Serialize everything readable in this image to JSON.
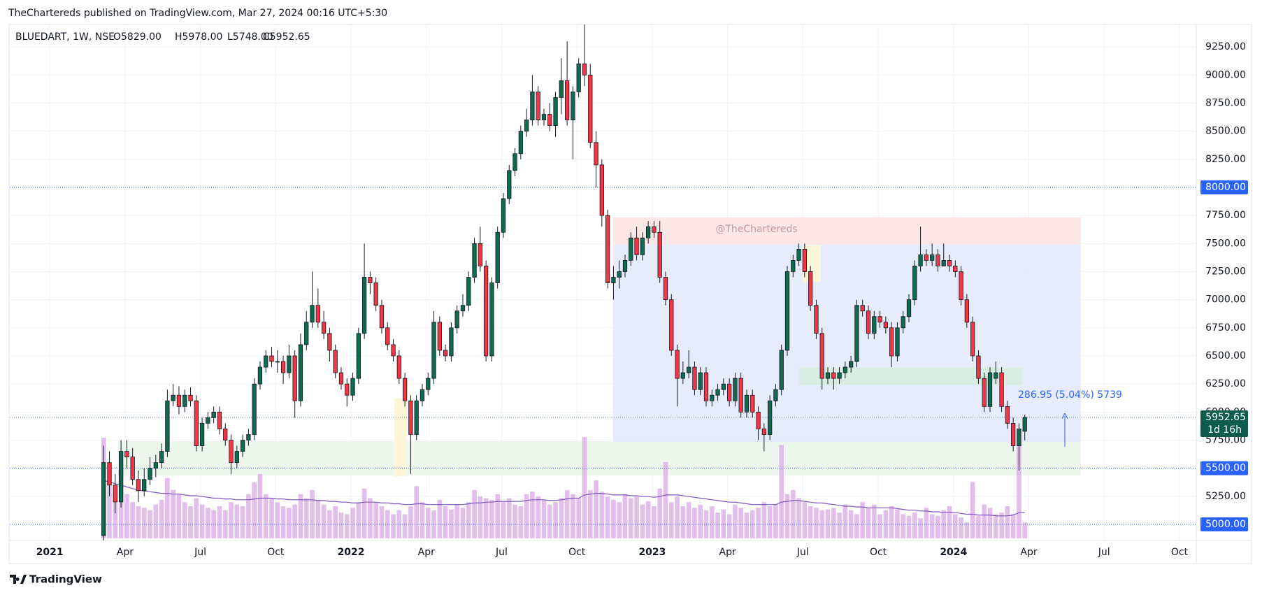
{
  "header": {
    "publisher": "TheChartereds published on TradingView.com, Mar 27, 2024 00:16 UTC+5:30",
    "footer": "TradingView"
  },
  "chart_data": {
    "type": "candlestick",
    "title": "BLUEDART, 1W, NSE",
    "ohlc_legend": [
      "O5829.00",
      "H5978.00",
      "L5748.00",
      "C5952.65"
    ],
    "watermark": "@TheChartereds",
    "measure": "286.95 (5.04%) 5739",
    "up_color": "#0f6b4f",
    "down_color": "#f23645",
    "volume_color": "#ddb3e6",
    "volume_ma_color": "#7e57c2",
    "xlim": [
      -16.2,
      188.6
    ],
    "xticks": [
      {
        "value": -9.3,
        "label": "2021"
      },
      {
        "value": 3.7,
        "label": "Apr"
      },
      {
        "value": 16.7,
        "label": "Jul"
      },
      {
        "value": 29.7,
        "label": "Oct"
      },
      {
        "value": 42.7,
        "label": "2022"
      },
      {
        "value": 55.7,
        "label": "Apr"
      },
      {
        "value": 68.7,
        "label": "Jul"
      },
      {
        "value": 81.7,
        "label": "Oct"
      },
      {
        "value": 94.7,
        "label": "2023"
      },
      {
        "value": 107.7,
        "label": "Apr"
      },
      {
        "value": 120.7,
        "label": "Jul"
      },
      {
        "value": 133.7,
        "label": "Oct"
      },
      {
        "value": 146.7,
        "label": "2024"
      },
      {
        "value": 159.7,
        "label": "Apr"
      },
      {
        "value": 172.7,
        "label": "Jul"
      },
      {
        "value": 185.7,
        "label": "Oct"
      }
    ],
    "ylim": [
      4857,
      9450
    ],
    "yticks": [
      {
        "value": 5250,
        "label": "5250.00"
      },
      {
        "value": 5750,
        "label": "5750.00"
      },
      {
        "value": 6000,
        "label": "6000.00"
      },
      {
        "value": 6250,
        "label": "6250.00"
      },
      {
        "value": 6500,
        "label": "6500.00"
      },
      {
        "value": 6750,
        "label": "6750.00"
      },
      {
        "value": 7000,
        "label": "7000.00"
      },
      {
        "value": 7250,
        "label": "7250.00"
      },
      {
        "value": 7500,
        "label": "7500.00"
      },
      {
        "value": 7750,
        "label": "7750.00"
      },
      {
        "value": 8250,
        "label": "8250.00"
      },
      {
        "value": 8500,
        "label": "8500.00"
      },
      {
        "value": 8750,
        "label": "8750.00"
      },
      {
        "value": 9000,
        "label": "9000.00"
      },
      {
        "value": 9250,
        "label": "9250.00"
      }
    ],
    "grid": true,
    "hlines": [
      {
        "value": 8000,
        "label": "8000.00"
      },
      {
        "value": 5500,
        "label": "5500.00"
      },
      {
        "value": 5000,
        "label": "5000.00"
      }
    ],
    "last_price": {
      "value": 5952.65,
      "label": "5952.65"
    },
    "countdown": "1d 16h",
    "ohlc": [
      [
        4900,
        5700,
        4830,
        5550
      ],
      [
        5550,
        5650,
        5250,
        5350
      ],
      [
        5350,
        5450,
        5100,
        5200
      ],
      [
        5200,
        5750,
        5150,
        5650
      ],
      [
        5650,
        5750,
        5500,
        5600
      ],
      [
        5600,
        5680,
        5350,
        5400
      ],
      [
        5400,
        5480,
        5200,
        5300
      ],
      [
        5300,
        5500,
        5250,
        5400
      ],
      [
        5400,
        5600,
        5350,
        5500
      ],
      [
        5500,
        5620,
        5420,
        5550
      ],
      [
        5550,
        5720,
        5500,
        5650
      ],
      [
        5650,
        6200,
        5600,
        6100
      ],
      [
        6100,
        6250,
        6050,
        6150
      ],
      [
        6150,
        6230,
        5980,
        6050
      ],
      [
        6050,
        6200,
        6000,
        6150
      ],
      [
        6150,
        6220,
        6050,
        6100
      ],
      [
        6100,
        6150,
        5650,
        5700
      ],
      [
        5700,
        5950,
        5650,
        5900
      ],
      [
        5900,
        6000,
        5850,
        5950
      ],
      [
        5950,
        6050,
        5900,
        6000
      ],
      [
        6000,
        6050,
        5800,
        5850
      ],
      [
        5850,
        5900,
        5700,
        5750
      ],
      [
        5750,
        5800,
        5450,
        5550
      ],
      [
        5550,
        5700,
        5500,
        5650
      ],
      [
        5650,
        5800,
        5600,
        5750
      ],
      [
        5750,
        5850,
        5700,
        5800
      ],
      [
        5800,
        6300,
        5750,
        6250
      ],
      [
        6250,
        6450,
        6200,
        6400
      ],
      [
        6400,
        6550,
        6350,
        6500
      ],
      [
        6500,
        6580,
        6400,
        6450
      ],
      [
        6450,
        6550,
        6350,
        6450
      ],
      [
        6450,
        6500,
        6250,
        6350
      ],
      [
        6350,
        6600,
        6300,
        6500
      ],
      [
        6500,
        6550,
        5950,
        6100
      ],
      [
        6100,
        6700,
        6050,
        6600
      ],
      [
        6600,
        6900,
        6550,
        6800
      ],
      [
        6800,
        7250,
        6750,
        6950
      ],
      [
        6950,
        7100,
        6750,
        6800
      ],
      [
        6800,
        6900,
        6650,
        6700
      ],
      [
        6700,
        6750,
        6450,
        6550
      ],
      [
        6550,
        6600,
        6300,
        6350
      ],
      [
        6350,
        6400,
        6200,
        6250
      ],
      [
        6250,
        6300,
        6050,
        6150
      ],
      [
        6150,
        6350,
        6100,
        6300
      ],
      [
        6300,
        6750,
        6250,
        6700
      ],
      [
        6700,
        7500,
        6650,
        7200
      ],
      [
        7200,
        7250,
        7050,
        7150
      ],
      [
        7150,
        7200,
        6900,
        6950
      ],
      [
        6950,
        7000,
        6700,
        6750
      ],
      [
        6750,
        6800,
        6550,
        6600
      ],
      [
        6600,
        6650,
        6450,
        6500
      ],
      [
        6500,
        6550,
        6250,
        6300
      ],
      [
        6300,
        6350,
        6050,
        6100
      ],
      [
        6100,
        6150,
        5450,
        5800
      ],
      [
        5800,
        6150,
        5750,
        6100
      ],
      [
        6100,
        6250,
        6050,
        6200
      ],
      [
        6200,
        6350,
        6150,
        6300
      ],
      [
        6300,
        6900,
        6250,
        6800
      ],
      [
        6800,
        6850,
        6500,
        6550
      ],
      [
        6550,
        6600,
        6450,
        6500
      ],
      [
        6500,
        6800,
        6450,
        6750
      ],
      [
        6750,
        6950,
        6700,
        6900
      ],
      [
        6900,
        7050,
        6850,
        6950
      ],
      [
        6950,
        7250,
        6900,
        7200
      ],
      [
        7200,
        7550,
        7150,
        7500
      ],
      [
        7500,
        7650,
        7250,
        7300
      ],
      [
        7300,
        7350,
        6450,
        6500
      ],
      [
        6500,
        7200,
        6450,
        7150
      ],
      [
        7150,
        7650,
        7100,
        7600
      ],
      [
        7600,
        7950,
        7550,
        7900
      ],
      [
        7900,
        8200,
        7850,
        8150
      ],
      [
        8150,
        8350,
        8100,
        8300
      ],
      [
        8300,
        8550,
        8250,
        8500
      ],
      [
        8500,
        8700,
        8450,
        8600
      ],
      [
        8600,
        9000,
        8550,
        8850
      ],
      [
        8850,
        8900,
        8550,
        8600
      ],
      [
        8600,
        8700,
        8550,
        8650
      ],
      [
        8650,
        8750,
        8500,
        8550
      ],
      [
        8550,
        8850,
        8450,
        8800
      ],
      [
        8800,
        9150,
        8650,
        8950
      ],
      [
        8950,
        9300,
        8550,
        8600
      ],
      [
        8600,
        8900,
        8250,
        8850
      ],
      [
        8850,
        9150,
        8800,
        9100
      ],
      [
        9100,
        9450,
        8900,
        9000
      ],
      [
        9000,
        9100,
        8350,
        8400
      ],
      [
        8400,
        8500,
        8000,
        8200
      ],
      [
        8200,
        8250,
        7650,
        7750
      ],
      [
        7750,
        7800,
        7100,
        7150
      ],
      [
        7150,
        7300,
        7000,
        7200
      ],
      [
        7200,
        7350,
        7100,
        7250
      ],
      [
        7250,
        7400,
        7200,
        7350
      ],
      [
        7350,
        7600,
        7300,
        7550
      ],
      [
        7550,
        7650,
        7350,
        7400
      ],
      [
        7400,
        7600,
        7350,
        7550
      ],
      [
        7550,
        7700,
        7500,
        7650
      ],
      [
        7650,
        7700,
        7550,
        7600
      ],
      [
        7600,
        7700,
        7150,
        7200
      ],
      [
        7200,
        7250,
        6950,
        7000
      ],
      [
        7000,
        7050,
        6500,
        6550
      ],
      [
        6550,
        6600,
        6050,
        6300
      ],
      [
        6300,
        6450,
        6250,
        6350
      ],
      [
        6350,
        6550,
        6300,
        6400
      ],
      [
        6400,
        6450,
        6150,
        6200
      ],
      [
        6200,
        6400,
        6150,
        6350
      ],
      [
        6350,
        6400,
        6050,
        6100
      ],
      [
        6100,
        6200,
        6050,
        6150
      ],
      [
        6150,
        6250,
        6100,
        6200
      ],
      [
        6200,
        6300,
        6150,
        6250
      ],
      [
        6250,
        6300,
        6050,
        6100
      ],
      [
        6100,
        6350,
        6050,
        6300
      ],
      [
        6300,
        6350,
        5950,
        6000
      ],
      [
        6000,
        6200,
        5950,
        6150
      ],
      [
        6150,
        6200,
        5950,
        6000
      ],
      [
        6000,
        6050,
        5750,
        5850
      ],
      [
        5850,
        5900,
        5650,
        5800
      ],
      [
        5800,
        6150,
        5750,
        6100
      ],
      [
        6100,
        6250,
        6050,
        6200
      ],
      [
        6200,
        6600,
        6150,
        6550
      ],
      [
        6550,
        7300,
        6500,
        7250
      ],
      [
        7250,
        7400,
        7200,
        7350
      ],
      [
        7350,
        7500,
        7300,
        7450
      ],
      [
        7450,
        7500,
        7200,
        7250
      ],
      [
        7250,
        7300,
        6900,
        6950
      ],
      [
        6950,
        7000,
        6650,
        6700
      ],
      [
        6700,
        6750,
        6200,
        6300
      ],
      [
        6300,
        6400,
        6250,
        6350
      ],
      [
        6350,
        6400,
        6200,
        6300
      ],
      [
        6300,
        6400,
        6250,
        6350
      ],
      [
        6350,
        6450,
        6300,
        6400
      ],
      [
        6400,
        6500,
        6350,
        6450
      ],
      [
        6450,
        7000,
        6400,
        6950
      ],
      [
        6950,
        7000,
        6850,
        6900
      ],
      [
        6900,
        6950,
        6650,
        6700
      ],
      [
        6700,
        6900,
        6650,
        6850
      ],
      [
        6850,
        6900,
        6750,
        6800
      ],
      [
        6800,
        6850,
        6700,
        6750
      ],
      [
        6750,
        6800,
        6400,
        6500
      ],
      [
        6500,
        6800,
        6450,
        6750
      ],
      [
        6750,
        6900,
        6700,
        6850
      ],
      [
        6850,
        7050,
        6800,
        7000
      ],
      [
        7000,
        7350,
        6950,
        7300
      ],
      [
        7300,
        7650,
        7250,
        7400
      ],
      [
        7400,
        7450,
        7300,
        7350
      ],
      [
        7350,
        7500,
        7300,
        7400
      ],
      [
        7400,
        7450,
        7250,
        7300
      ],
      [
        7300,
        7500,
        7300,
        7350
      ],
      [
        7350,
        7400,
        7250,
        7300
      ],
      [
        7300,
        7350,
        7200,
        7250
      ],
      [
        7250,
        7300,
        6950,
        7000
      ],
      [
        7000,
        7050,
        6750,
        6800
      ],
      [
        6800,
        6850,
        6450,
        6500
      ],
      [
        6500,
        6550,
        6250,
        6300
      ],
      [
        6300,
        6350,
        6000,
        6050
      ],
      [
        6050,
        6400,
        6000,
        6350
      ],
      [
        6300,
        6450,
        6250,
        6350
      ],
      [
        6350,
        6400,
        6000,
        6050
      ],
      [
        6050,
        6100,
        5850,
        5900
      ],
      [
        5900,
        5950,
        5650,
        5700
      ],
      [
        5700,
        5900,
        5480,
        5850
      ],
      [
        5829,
        5978,
        5748,
        5952.65
      ]
    ],
    "volume": [
      125,
      70,
      60,
      85,
      55,
      45,
      40,
      38,
      35,
      42,
      48,
      75,
      60,
      55,
      45,
      40,
      50,
      42,
      38,
      35,
      40,
      35,
      45,
      42,
      40,
      55,
      70,
      80,
      55,
      50,
      45,
      40,
      38,
      42,
      55,
      50,
      60,
      48,
      42,
      35,
      40,
      32,
      30,
      38,
      45,
      62,
      50,
      45,
      40,
      35,
      30,
      35,
      30,
      40,
      65,
      45,
      38,
      35,
      48,
      40,
      36,
      42,
      38,
      45,
      60,
      52,
      50,
      48,
      55,
      45,
      50,
      42,
      40,
      55,
      58,
      52,
      48,
      42,
      45,
      50,
      60,
      55,
      50,
      126,
      60,
      72,
      58,
      52,
      48,
      45,
      55,
      50,
      52,
      42,
      46,
      40,
      62,
      95,
      45,
      52,
      40,
      45,
      38,
      42,
      35,
      40,
      32,
      36,
      30,
      42,
      38,
      32,
      35,
      38,
      45,
      40,
      42,
      116,
      55,
      60,
      50,
      45,
      40,
      38,
      35,
      36,
      38,
      32,
      42,
      35,
      30,
      45,
      38,
      42,
      30,
      35,
      40,
      36,
      30,
      28,
      32,
      25,
      38,
      30,
      28,
      35,
      40,
      30,
      26,
      20,
      70,
      28,
      42,
      38,
      30,
      32,
      40,
      30,
      122,
      20
    ],
    "volume_ma": [
      72,
      70,
      68,
      66,
      64,
      62,
      60,
      59,
      58,
      57,
      56,
      56,
      55,
      55,
      54,
      53,
      53,
      52,
      51,
      50,
      50,
      49,
      49,
      48,
      48,
      48,
      49,
      50,
      50,
      50,
      49,
      49,
      48,
      48,
      48,
      48,
      48,
      47,
      47,
      46,
      46,
      45,
      45,
      44,
      44,
      45,
      45,
      45,
      44,
      44,
      43,
      43,
      42,
      42,
      43,
      43,
      42,
      42,
      42,
      42,
      42,
      42,
      42,
      43,
      44,
      44,
      45,
      45,
      46,
      46,
      46,
      46,
      46,
      47,
      48,
      48,
      48,
      47,
      47,
      48,
      49,
      50,
      50,
      54,
      55,
      56,
      56,
      55,
      54,
      54,
      54,
      53,
      53,
      52,
      52,
      51,
      52,
      54,
      54,
      54,
      53,
      52,
      51,
      50,
      49,
      48,
      47,
      46,
      45,
      45,
      44,
      43,
      42,
      42,
      42,
      42,
      42,
      45,
      46,
      47,
      47,
      46,
      45,
      44,
      44,
      43,
      42,
      41,
      40,
      40,
      39,
      39,
      38,
      38,
      38,
      38,
      38,
      37,
      36,
      35,
      35,
      34,
      34,
      33,
      33,
      32,
      32,
      32,
      31,
      30,
      30,
      29,
      29,
      29,
      28,
      28,
      28,
      29,
      32,
      32
    ]
  }
}
